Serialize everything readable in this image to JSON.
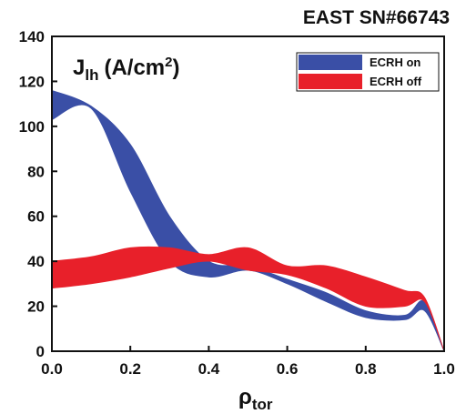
{
  "chart_data": {
    "type": "band",
    "title": "EAST SN#66743",
    "annotation": {
      "base": "J",
      "sub": "lh",
      "text": "(A/cm",
      "sup": "2",
      "end": ")"
    },
    "xlabel": {
      "base": "ρ",
      "sub": "tor"
    },
    "xlim": [
      0,
      1
    ],
    "xticks": [
      {
        "value": 0,
        "label": "0.0"
      },
      {
        "value": 0.2,
        "label": "0.2"
      },
      {
        "value": 0.4,
        "label": "0.4"
      },
      {
        "value": 0.6,
        "label": "0.6"
      },
      {
        "value": 0.8,
        "label": "0.8"
      },
      {
        "value": 1,
        "label": "1.0"
      }
    ],
    "ylim": [
      0,
      140
    ],
    "yticks": [
      0,
      20,
      40,
      60,
      80,
      100,
      120,
      140
    ],
    "legend": "upper right",
    "series": [
      {
        "name": "ECRH on",
        "color": "#3a4fa6",
        "x": [
          0,
          0.1,
          0.2,
          0.3,
          0.4,
          0.5,
          0.6,
          0.7,
          0.8,
          0.9,
          0.95,
          1
        ],
        "upper": [
          116,
          109,
          92,
          60,
          40,
          38,
          32,
          26,
          18,
          16,
          22,
          0
        ],
        "lower": [
          103,
          108,
          71,
          40,
          33,
          36,
          30,
          22,
          15,
          14,
          18,
          0
        ]
      },
      {
        "name": "ECRH off",
        "color": "#e8202a",
        "x": [
          0,
          0.1,
          0.2,
          0.3,
          0.4,
          0.5,
          0.6,
          0.7,
          0.8,
          0.9,
          0.95,
          1
        ],
        "upper": [
          40,
          42,
          46,
          46,
          43,
          46,
          38,
          38,
          33,
          27,
          24,
          0
        ],
        "lower": [
          28,
          30,
          33,
          37,
          40,
          36,
          34,
          28,
          20,
          20,
          22,
          0
        ]
      }
    ]
  }
}
